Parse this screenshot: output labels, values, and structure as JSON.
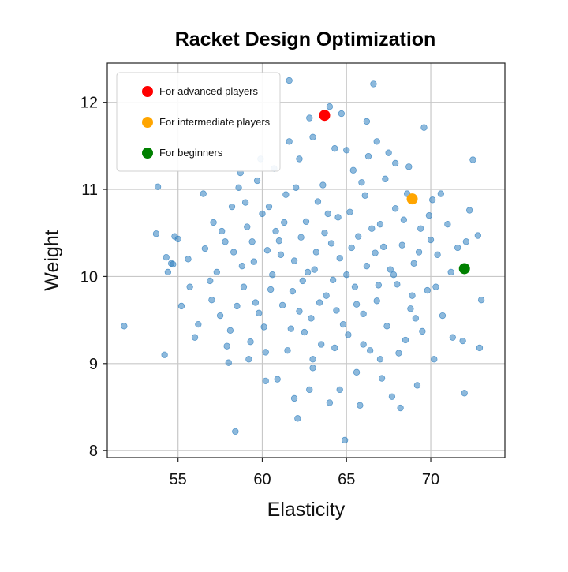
{
  "chart_data": {
    "type": "scatter",
    "title": "Racket Design Optimization",
    "xlabel": "Elasticity",
    "ylabel": "Weight",
    "xlim": [
      50.8,
      74.4
    ],
    "ylim": [
      7.92,
      12.45
    ],
    "xticks": [
      55,
      60,
      65,
      70
    ],
    "yticks": [
      8,
      9,
      10,
      11,
      12
    ],
    "grid": true,
    "legend_position": "top-left",
    "colors": {
      "cloud": "#2f7fbf",
      "advanced": "#ff0000",
      "intermediate": "#ffa500",
      "beginners": "#008000",
      "grid": "#c8c8c8",
      "axis": "#222222"
    },
    "highlights": [
      {
        "label": "For advanced players",
        "x": 63.7,
        "y": 11.85,
        "color": "#ff0000"
      },
      {
        "label": "For intermediate players",
        "x": 68.9,
        "y": 10.89,
        "color": "#ffa500"
      },
      {
        "label": "For beginners",
        "x": 72.0,
        "y": 10.09,
        "color": "#008000"
      }
    ],
    "series": [
      {
        "points": [
          [
            51.8,
            9.43
          ],
          [
            53.7,
            10.49
          ],
          [
            53.8,
            11.03
          ],
          [
            54.2,
            9.1
          ],
          [
            54.3,
            10.22
          ],
          [
            54.4,
            10.05
          ],
          [
            54.6,
            10.15
          ],
          [
            54.7,
            10.14
          ],
          [
            54.8,
            10.46
          ],
          [
            55.0,
            10.43
          ],
          [
            55.2,
            9.66
          ],
          [
            55.6,
            10.2
          ],
          [
            55.7,
            9.88
          ],
          [
            56.0,
            9.3
          ],
          [
            56.2,
            9.45
          ],
          [
            56.5,
            10.95
          ],
          [
            57.0,
            9.73
          ],
          [
            57.3,
            10.05
          ],
          [
            57.5,
            9.55
          ],
          [
            57.8,
            10.4
          ],
          [
            58.0,
            9.01
          ],
          [
            58.2,
            10.8
          ],
          [
            58.4,
            8.22
          ],
          [
            58.5,
            9.66
          ],
          [
            58.7,
            11.19
          ],
          [
            58.9,
            9.88
          ],
          [
            59.1,
            10.57
          ],
          [
            59.3,
            9.25
          ],
          [
            59.5,
            10.17
          ],
          [
            59.7,
            11.1
          ],
          [
            59.8,
            9.58
          ],
          [
            60.0,
            10.72
          ],
          [
            60.2,
            9.13
          ],
          [
            60.3,
            10.3
          ],
          [
            60.5,
            9.85
          ],
          [
            60.7,
            11.24
          ],
          [
            60.9,
            8.82
          ],
          [
            61.0,
            10.41
          ],
          [
            61.2,
            9.67
          ],
          [
            61.4,
            10.94
          ],
          [
            61.6,
            12.25
          ],
          [
            61.7,
            9.4
          ],
          [
            61.9,
            10.18
          ],
          [
            62.1,
            8.37
          ],
          [
            62.2,
            11.35
          ],
          [
            62.4,
            9.95
          ],
          [
            62.6,
            10.63
          ],
          [
            62.8,
            8.7
          ],
          [
            62.9,
            9.52
          ],
          [
            63.0,
            11.6
          ],
          [
            63.1,
            10.08
          ],
          [
            63.3,
            10.86
          ],
          [
            63.5,
            9.22
          ],
          [
            63.6,
            11.05
          ],
          [
            63.8,
            9.78
          ],
          [
            64.0,
            8.55
          ],
          [
            64.1,
            10.38
          ],
          [
            64.3,
            11.47
          ],
          [
            64.4,
            9.61
          ],
          [
            64.6,
            10.21
          ],
          [
            64.7,
            11.87
          ],
          [
            64.9,
            8.12
          ],
          [
            65.0,
            10.02
          ],
          [
            65.1,
            9.33
          ],
          [
            65.2,
            10.74
          ],
          [
            65.4,
            11.22
          ],
          [
            65.5,
            9.88
          ],
          [
            65.7,
            10.46
          ],
          [
            65.8,
            8.52
          ],
          [
            66.0,
            9.57
          ],
          [
            66.1,
            10.93
          ],
          [
            66.3,
            11.38
          ],
          [
            66.4,
            9.15
          ],
          [
            66.6,
            12.21
          ],
          [
            66.7,
            10.27
          ],
          [
            66.8,
            9.72
          ],
          [
            67.0,
            10.6
          ],
          [
            67.1,
            8.83
          ],
          [
            67.3,
            11.12
          ],
          [
            67.4,
            9.43
          ],
          [
            67.6,
            10.08
          ],
          [
            67.7,
            8.62
          ],
          [
            67.9,
            10.78
          ],
          [
            68.0,
            9.91
          ],
          [
            68.2,
            8.49
          ],
          [
            68.3,
            10.36
          ],
          [
            68.5,
            9.27
          ],
          [
            68.7,
            11.26
          ],
          [
            68.8,
            9.63
          ],
          [
            69.0,
            10.15
          ],
          [
            69.2,
            8.75
          ],
          [
            69.4,
            10.55
          ],
          [
            69.5,
            9.37
          ],
          [
            69.6,
            11.71
          ],
          [
            69.8,
            9.84
          ],
          [
            70.0,
            10.42
          ],
          [
            70.2,
            9.05
          ],
          [
            70.4,
            10.25
          ],
          [
            70.7,
            9.55
          ],
          [
            71.0,
            10.6
          ],
          [
            71.3,
            9.3
          ],
          [
            71.6,
            10.33
          ],
          [
            71.9,
            9.26
          ],
          [
            72.0,
            8.66
          ],
          [
            72.1,
            10.4
          ],
          [
            72.3,
            10.76
          ],
          [
            72.5,
            11.34
          ],
          [
            72.8,
            10.47
          ],
          [
            72.9,
            9.18
          ],
          [
            73.0,
            9.73
          ],
          [
            56.6,
            10.32
          ],
          [
            57.1,
            10.62
          ],
          [
            58.8,
            10.12
          ],
          [
            59.6,
            9.7
          ],
          [
            60.6,
            10.02
          ],
          [
            61.1,
            10.25
          ],
          [
            61.8,
            9.83
          ],
          [
            62.3,
            10.45
          ],
          [
            62.7,
            10.05
          ],
          [
            63.2,
            10.28
          ],
          [
            63.7,
            10.5
          ],
          [
            64.2,
            9.96
          ],
          [
            64.5,
            10.68
          ],
          [
            65.3,
            10.33
          ],
          [
            65.6,
            9.68
          ],
          [
            66.2,
            10.12
          ],
          [
            66.5,
            10.55
          ],
          [
            66.9,
            9.9
          ],
          [
            67.2,
            10.34
          ],
          [
            67.8,
            10.02
          ],
          [
            68.4,
            10.65
          ],
          [
            68.9,
            9.78
          ],
          [
            57.6,
            10.52
          ],
          [
            58.1,
            9.38
          ],
          [
            59.0,
            10.85
          ],
          [
            60.1,
            9.42
          ],
          [
            60.8,
            10.52
          ],
          [
            61.5,
            9.15
          ],
          [
            62.0,
            11.02
          ],
          [
            62.5,
            9.36
          ],
          [
            63.4,
            9.7
          ],
          [
            63.9,
            10.72
          ],
          [
            64.8,
            9.45
          ],
          [
            65.9,
            11.08
          ],
          [
            66.0,
            9.22
          ],
          [
            67.5,
            11.42
          ],
          [
            68.1,
            9.12
          ],
          [
            68.6,
            10.95
          ],
          [
            69.1,
            9.52
          ],
          [
            69.9,
            10.7
          ],
          [
            70.3,
            9.88
          ],
          [
            70.6,
            10.95
          ],
          [
            71.2,
            10.05
          ],
          [
            58.3,
            10.28
          ],
          [
            59.4,
            10.4
          ],
          [
            60.4,
            10.8
          ],
          [
            61.3,
            10.62
          ],
          [
            62.2,
            9.6
          ],
          [
            63.0,
            9.05
          ],
          [
            64.3,
            9.18
          ],
          [
            65.0,
            11.45
          ],
          [
            66.8,
            11.55
          ],
          [
            67.9,
            11.3
          ],
          [
            69.3,
            10.28
          ],
          [
            70.1,
            10.88
          ],
          [
            56.9,
            9.95
          ],
          [
            57.9,
            9.2
          ],
          [
            58.6,
            11.02
          ],
          [
            59.9,
            11.35
          ],
          [
            61.6,
            11.55
          ],
          [
            62.8,
            11.82
          ],
          [
            64.0,
            11.95
          ],
          [
            66.2,
            11.78
          ],
          [
            63.0,
            8.95
          ],
          [
            64.6,
            8.7
          ],
          [
            65.6,
            8.9
          ],
          [
            67.0,
            9.05
          ],
          [
            60.2,
            8.8
          ],
          [
            59.2,
            9.05
          ],
          [
            61.9,
            8.6
          ]
        ]
      }
    ]
  }
}
